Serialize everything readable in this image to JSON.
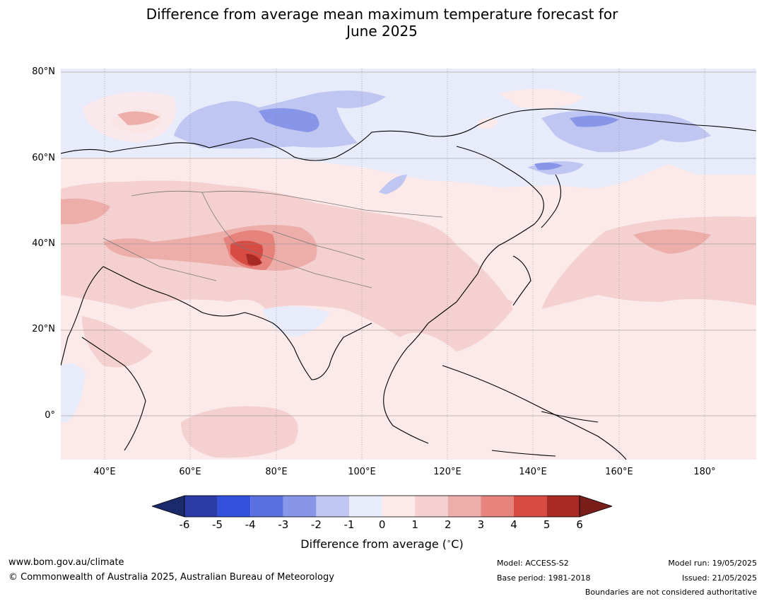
{
  "title_line1": "Difference from average mean maximum temperature forecast for",
  "title_line2": "June 2025",
  "map": {
    "lat_labels": [
      "80°N",
      "60°N",
      "40°N",
      "20°N",
      "0°"
    ],
    "lon_labels": [
      "40°E",
      "60°E",
      "80°E",
      "100°E",
      "120°E",
      "140°E",
      "160°E",
      "180°"
    ],
    "extent": {
      "lon_min": 30,
      "lon_max": 190,
      "lat_min": -10,
      "lat_max": 80
    }
  },
  "colorbar": {
    "ticks": [
      "-6",
      "-5",
      "-4",
      "-3",
      "-2",
      "-1",
      "0",
      "1",
      "2",
      "3",
      "4",
      "5",
      "6"
    ],
    "colors": [
      "#1b2a6b",
      "#2a3aa6",
      "#3350dd",
      "#5b70e0",
      "#8796e8",
      "#bfc6f2",
      "#e8ebfa",
      "#fce9e9",
      "#f4d0d0",
      "#edaeaa",
      "#e5837c",
      "#d84b43",
      "#a82a24",
      "#7a1e1a"
    ],
    "label": "Difference from average ($^\\circ$C)"
  },
  "footer": {
    "website": "www.bom.gov.au/climate",
    "copyright": "© Commonwealth of Australia 2025, Australian Bureau of Meteorology",
    "model": "Model: ACCESS-S2",
    "base_period": "Base period: 1981-2018",
    "model_run": "Model run: 19/05/2025",
    "issued": "Issued: 21/05/2025",
    "disclaimer": "Boundaries are not considered authoritative"
  }
}
